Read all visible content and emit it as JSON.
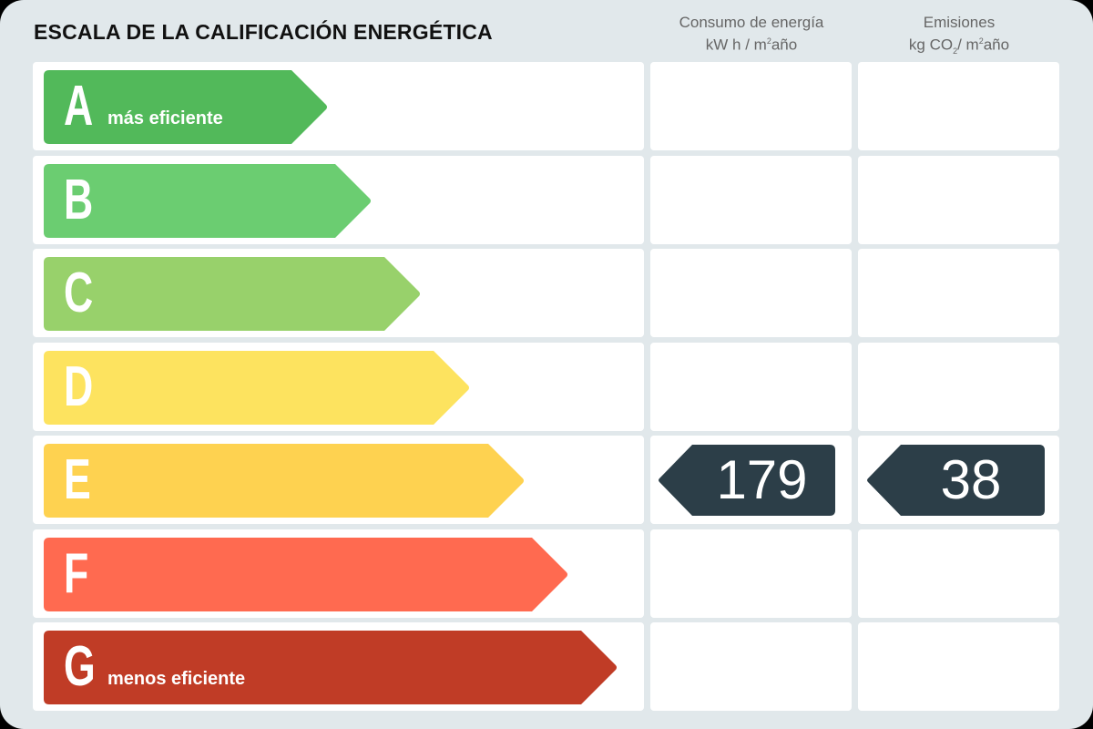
{
  "title": "ESCALA DE LA CALIFICACIÓN ENERGÉTICA",
  "columns": {
    "consumo": {
      "line1": "Consumo de energía",
      "unit_pre": "kW h / m",
      "unit_sup": "2",
      "unit_post": "año"
    },
    "emisiones": {
      "line1": "Emisiones",
      "unit_pre": "kg CO",
      "unit_sub": "2",
      "unit_mid": "/ m",
      "unit_sup": "2",
      "unit_post": "año"
    }
  },
  "ratings": [
    {
      "letter": "A",
      "label": "más eficiente",
      "color": "#52b95a"
    },
    {
      "letter": "B",
      "label": "",
      "color": "#6bcd71"
    },
    {
      "letter": "C",
      "label": "",
      "color": "#98d16b"
    },
    {
      "letter": "D",
      "label": "",
      "color": "#fde35f"
    },
    {
      "letter": "E",
      "label": "",
      "color": "#fed250"
    },
    {
      "letter": "F",
      "label": "",
      "color": "#ff6a50"
    },
    {
      "letter": "G",
      "label": "menos eficiente",
      "color": "#c03c26"
    }
  ],
  "result": {
    "rating": "E",
    "consumo": "179",
    "emisiones": "38",
    "badge_color": "#2c3e48"
  }
}
